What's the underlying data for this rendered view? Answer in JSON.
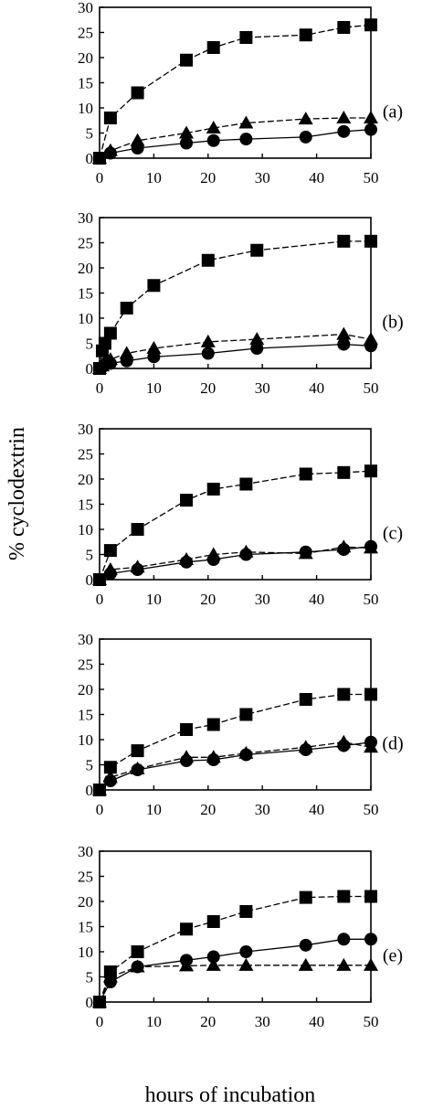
{
  "figure": {
    "ylabel": "% cyclodextrin",
    "xlabel": "hours of incubation"
  },
  "chart_data": [
    {
      "type": "line",
      "panel": "(a)",
      "x_ticks": [
        "0",
        "10",
        "20",
        "30",
        "40",
        "50"
      ],
      "y_ticks": [
        "0",
        "5",
        "10",
        "15",
        "20",
        "25",
        "30"
      ],
      "xlim": [
        0,
        50
      ],
      "ylim": [
        0,
        30
      ],
      "series": [
        {
          "marker": "square",
          "dash": "dashed",
          "x": [
            0,
            2,
            7,
            16,
            21,
            27,
            38,
            45,
            50
          ],
          "y": [
            0,
            8,
            13,
            19.5,
            22,
            24,
            24.5,
            26,
            26.5
          ]
        },
        {
          "marker": "triangle",
          "dash": "dashed",
          "x": [
            0,
            2,
            7,
            16,
            21,
            27,
            38,
            45,
            50
          ],
          "y": [
            0,
            1.5,
            3.5,
            5,
            6,
            7,
            7.8,
            8,
            8
          ]
        },
        {
          "marker": "circle",
          "dash": "solid",
          "x": [
            0,
            2,
            7,
            16,
            21,
            27,
            38,
            45,
            50
          ],
          "y": [
            0,
            1,
            2,
            3,
            3.5,
            3.8,
            4.2,
            5.3,
            5.7
          ]
        }
      ]
    },
    {
      "type": "line",
      "panel": "(b)",
      "x_ticks": [
        "0",
        "10",
        "20",
        "30",
        "40",
        "50"
      ],
      "y_ticks": [
        "0",
        "5",
        "10",
        "15",
        "20",
        "25",
        "30"
      ],
      "xlim": [
        0,
        50
      ],
      "ylim": [
        0,
        30
      ],
      "series": [
        {
          "marker": "square",
          "dash": "dashed",
          "x": [
            0,
            0.5,
            1,
            2,
            5,
            10,
            20,
            29,
            45,
            50
          ],
          "y": [
            0,
            3.5,
            5,
            7,
            12,
            16.5,
            21.5,
            23.5,
            25.3,
            25.3
          ]
        },
        {
          "marker": "triangle",
          "dash": "dashed",
          "x": [
            0,
            0.5,
            1,
            2,
            5,
            10,
            20,
            29,
            45,
            50
          ],
          "y": [
            0,
            0.5,
            1.5,
            1.8,
            3,
            4,
            5.3,
            5.8,
            6.8,
            5.8
          ]
        },
        {
          "marker": "circle",
          "dash": "solid",
          "x": [
            0,
            0.5,
            1,
            2,
            5,
            10,
            20,
            29,
            45,
            50
          ],
          "y": [
            0,
            0.3,
            0.8,
            1,
            1.5,
            2.3,
            3,
            4,
            4.8,
            4.5
          ]
        }
      ]
    },
    {
      "type": "line",
      "panel": "(c)",
      "x_ticks": [
        "0",
        "10",
        "20",
        "30",
        "40",
        "50"
      ],
      "y_ticks": [
        "0",
        "5",
        "10",
        "15",
        "20",
        "25",
        "30"
      ],
      "xlim": [
        0,
        50
      ],
      "ylim": [
        0,
        30
      ],
      "series": [
        {
          "marker": "square",
          "dash": "dashed",
          "x": [
            0,
            2,
            7,
            16,
            21,
            27,
            38,
            45,
            50
          ],
          "y": [
            0,
            5.8,
            10,
            15.8,
            18,
            19,
            21,
            21.3,
            21.6
          ]
        },
        {
          "marker": "triangle",
          "dash": "dashed",
          "x": [
            0,
            2,
            7,
            16,
            21,
            27,
            38,
            45,
            50
          ],
          "y": [
            0,
            2,
            2.5,
            4,
            5,
            5.5,
            5.2,
            6.5,
            6.3
          ]
        },
        {
          "marker": "circle",
          "dash": "solid",
          "x": [
            0,
            2,
            7,
            16,
            21,
            27,
            38,
            45,
            50
          ],
          "y": [
            0,
            1.2,
            2,
            3.5,
            4,
            5,
            5.5,
            6,
            6.6
          ]
        }
      ]
    },
    {
      "type": "line",
      "panel": "(d)",
      "x_ticks": [
        "0",
        "10",
        "20",
        "30",
        "40",
        "50"
      ],
      "y_ticks": [
        "0",
        "5",
        "10",
        "15",
        "20",
        "25",
        "30"
      ],
      "xlim": [
        0,
        50
      ],
      "ylim": [
        0,
        30
      ],
      "series": [
        {
          "marker": "square",
          "dash": "dashed",
          "x": [
            0,
            2,
            7,
            16,
            21,
            27,
            38,
            45,
            50
          ],
          "y": [
            0,
            4.5,
            7.8,
            12,
            13,
            15,
            18,
            19,
            19
          ]
        },
        {
          "marker": "triangle",
          "dash": "dashed",
          "x": [
            0,
            2,
            7,
            16,
            21,
            27,
            38,
            45,
            50
          ],
          "y": [
            0,
            2.5,
            4.2,
            6.5,
            6.5,
            7.3,
            8.5,
            9.5,
            8.5
          ]
        },
        {
          "marker": "circle",
          "dash": "solid",
          "x": [
            0,
            2,
            7,
            16,
            21,
            27,
            38,
            45,
            50
          ],
          "y": [
            0,
            1.8,
            4,
            5.8,
            6,
            7,
            8,
            8.8,
            9.5
          ]
        }
      ]
    },
    {
      "type": "line",
      "panel": "(e)",
      "x_ticks": [
        "0",
        "10",
        "20",
        "30",
        "40",
        "50"
      ],
      "y_ticks": [
        "0",
        "5",
        "10",
        "15",
        "20",
        "25",
        "30"
      ],
      "xlim": [
        0,
        50
      ],
      "ylim": [
        0,
        30
      ],
      "series": [
        {
          "marker": "square",
          "dash": "dashed",
          "x": [
            0,
            2,
            7,
            16,
            21,
            27,
            38,
            45,
            50
          ],
          "y": [
            0,
            6,
            10,
            14.5,
            16,
            18,
            20.8,
            21,
            21
          ]
        },
        {
          "marker": "circle",
          "dash": "solid",
          "x": [
            0,
            2,
            7,
            16,
            21,
            27,
            38,
            45,
            50
          ],
          "y": [
            0,
            4,
            7,
            8.3,
            9,
            10,
            11.3,
            12.5,
            12.5
          ]
        },
        {
          "marker": "triangle",
          "dash": "dashed",
          "x": [
            0,
            2,
            7,
            16,
            21,
            27,
            38,
            45,
            50
          ],
          "y": [
            0,
            5,
            7,
            7.2,
            7.3,
            7.3,
            7.3,
            7.3,
            7.3
          ]
        }
      ]
    }
  ]
}
